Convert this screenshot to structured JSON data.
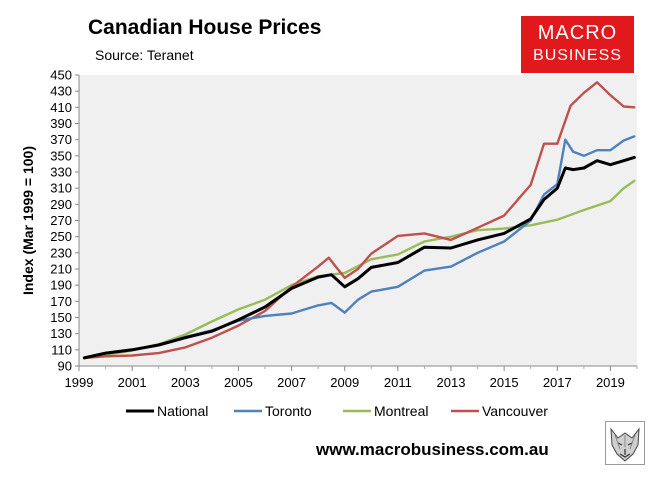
{
  "header": {
    "title": "Canadian House Prices",
    "subtitle": "Source: Teranet",
    "logo_line1": "MACRO",
    "logo_line2": "BUSINESS"
  },
  "footer": {
    "url": "www.macrobusiness.com.au"
  },
  "colors": {
    "National": "#000000",
    "Toronto": "#4f81bd",
    "Montreal": "#9bbb59",
    "Vancouver": "#c0504d",
    "logo_bg": "#e1181c",
    "plot_bg": "#f0f0f0"
  },
  "chart_data": {
    "type": "line",
    "title": "Canadian House Prices",
    "xlabel": "",
    "ylabel": "Index (Mar 1999 = 100)",
    "xlim": [
      1999,
      2020
    ],
    "ylim": [
      90,
      450
    ],
    "x_ticks": [
      "1999",
      "2001",
      "2003",
      "2005",
      "2007",
      "2009",
      "2011",
      "2013",
      "2015",
      "2017",
      "2019"
    ],
    "y_ticks": [
      "90",
      "110",
      "130",
      "150",
      "170",
      "190",
      "210",
      "230",
      "250",
      "270",
      "290",
      "310",
      "330",
      "350",
      "370",
      "390",
      "410",
      "430",
      "450"
    ],
    "grid": false,
    "legend": "bottom",
    "series": [
      {
        "name": "National",
        "x": [
          1999.2,
          2000,
          2001,
          2002,
          2003,
          2004,
          2005,
          2006,
          2007,
          2008,
          2008.5,
          2009,
          2009.5,
          2010,
          2011,
          2012,
          2013,
          2014,
          2015,
          2016,
          2016.5,
          2017,
          2017.3,
          2017.6,
          2018,
          2018.5,
          2019,
          2019.5,
          2019.9
        ],
        "y": [
          100,
          106,
          110,
          116,
          125,
          133,
          147,
          163,
          186,
          200,
          203,
          188,
          198,
          212,
          218,
          237,
          236,
          246,
          254,
          272,
          296,
          310,
          335,
          333,
          335,
          344,
          339,
          344,
          348
        ]
      },
      {
        "name": "Toronto",
        "x": [
          1999.2,
          2000,
          2001,
          2002,
          2003,
          2004,
          2005,
          2006,
          2007,
          2007.5,
          2008,
          2008.5,
          2009,
          2009.5,
          2010,
          2011,
          2012,
          2013,
          2014,
          2015,
          2016,
          2016.5,
          2017,
          2017.3,
          2017.6,
          2018,
          2018.5,
          2019,
          2019.5,
          2019.9
        ],
        "y": [
          100,
          106,
          110,
          116,
          126,
          134,
          146,
          152,
          155,
          160,
          165,
          168,
          156,
          172,
          182,
          188,
          208,
          213,
          230,
          244,
          270,
          302,
          315,
          370,
          355,
          350,
          357,
          357,
          369,
          374
        ]
      },
      {
        "name": "Montreal",
        "x": [
          1999.2,
          2000,
          2001,
          2002,
          2003,
          2004,
          2005,
          2006,
          2007,
          2008,
          2009,
          2010,
          2011,
          2012,
          2013,
          2014,
          2015,
          2016,
          2017,
          2018,
          2019,
          2019.5,
          2019.9
        ],
        "y": [
          100,
          104,
          109,
          117,
          129,
          145,
          160,
          172,
          190,
          201,
          205,
          222,
          228,
          244,
          250,
          258,
          260,
          264,
          271,
          283,
          294,
          310,
          319
        ]
      },
      {
        "name": "Vancouver",
        "x": [
          1999.2,
          2000,
          2001,
          2002,
          2003,
          2004,
          2005,
          2006,
          2007,
          2008,
          2008.4,
          2009,
          2009.5,
          2010,
          2011,
          2012,
          2013,
          2014,
          2015,
          2016,
          2016.5,
          2017,
          2017.5,
          2018,
          2018.5,
          2019,
          2019.5,
          2019.9
        ],
        "y": [
          100,
          102,
          103,
          106,
          113,
          125,
          140,
          158,
          188,
          213,
          224,
          199,
          210,
          229,
          251,
          254,
          246,
          261,
          276,
          314,
          365,
          365,
          412,
          428,
          441,
          425,
          411,
          410
        ]
      }
    ]
  }
}
